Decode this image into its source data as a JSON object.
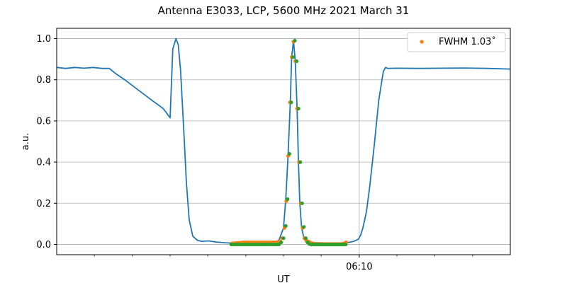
{
  "chart_data": {
    "type": "line",
    "title": "Antenna E3033, LCP, 5600 MHz 2021 March 31",
    "xlabel": "UT",
    "ylabel": "a.u.",
    "x_range": [
      0,
      1
    ],
    "ylim": [
      -0.05,
      1.05
    ],
    "y_ticks": [
      0.0,
      0.2,
      0.4,
      0.6,
      0.8,
      1.0
    ],
    "y_tick_labels": [
      "0.0",
      "0.2",
      "0.4",
      "0.6",
      "0.8",
      "1.0"
    ],
    "x_major_tick": {
      "x": 0.667,
      "label": "06:10"
    },
    "x_minor_ticks": [
      0.083,
      0.167,
      0.25,
      0.333,
      0.417,
      0.5,
      0.583,
      0.75,
      0.833,
      0.917
    ],
    "grid": true,
    "legend": {
      "placement": "top-right",
      "label": "FWHM 1.03$^\\circ$",
      "display_label": "FWHM 1.03˚"
    },
    "colors": {
      "line": "#1f77b4",
      "fwhm_points": "#ff7f0e",
      "fit_points": "#2ca02c",
      "grid": "#b0b0b0"
    },
    "series": [
      {
        "kind": "line",
        "x": [
          0.0,
          0.02,
          0.04,
          0.06,
          0.08,
          0.1,
          0.116,
          0.13,
          0.15,
          0.18,
          0.21,
          0.235,
          0.245,
          0.25,
          0.256,
          0.263,
          0.268,
          0.273,
          0.28,
          0.286,
          0.292,
          0.3,
          0.31,
          0.32,
          0.335,
          0.35,
          0.37,
          0.39,
          0.41,
          0.43,
          0.45,
          0.47,
          0.48,
          0.49,
          0.5,
          0.505,
          0.51,
          0.515,
          0.518,
          0.522,
          0.526,
          0.53,
          0.533,
          0.536,
          0.54,
          0.545,
          0.55,
          0.56,
          0.575,
          0.59,
          0.61,
          0.63,
          0.645,
          0.655,
          0.665,
          0.67,
          0.675,
          0.683,
          0.69,
          0.7,
          0.71,
          0.72,
          0.725,
          0.73,
          0.75,
          0.8,
          0.85,
          0.9,
          0.95,
          1.0
        ],
        "y": [
          0.86,
          0.855,
          0.86,
          0.856,
          0.86,
          0.855,
          0.855,
          0.83,
          0.8,
          0.75,
          0.7,
          0.66,
          0.63,
          0.615,
          0.95,
          1.0,
          0.97,
          0.85,
          0.56,
          0.3,
          0.12,
          0.04,
          0.02,
          0.015,
          0.017,
          0.012,
          0.008,
          0.006,
          0.006,
          0.006,
          0.007,
          0.008,
          0.01,
          0.02,
          0.08,
          0.22,
          0.43,
          0.69,
          0.91,
          0.99,
          0.89,
          0.66,
          0.4,
          0.2,
          0.08,
          0.03,
          0.01,
          0.005,
          0.004,
          0.004,
          0.004,
          0.005,
          0.01,
          0.015,
          0.025,
          0.045,
          0.08,
          0.16,
          0.28,
          0.48,
          0.7,
          0.84,
          0.86,
          0.855,
          0.856,
          0.855,
          0.856,
          0.857,
          0.855,
          0.852
        ]
      },
      {
        "kind": "scatter",
        "x": [
          0.387,
          0.392,
          0.397,
          0.402,
          0.407,
          0.412,
          0.417,
          0.422,
          0.427,
          0.432,
          0.437,
          0.442,
          0.447,
          0.452,
          0.457,
          0.462,
          0.467,
          0.472,
          0.477,
          0.482,
          0.487,
          0.492,
          0.497,
          0.502,
          0.506,
          0.51,
          0.514,
          0.518,
          0.522,
          0.526,
          0.53,
          0.534,
          0.538,
          0.542,
          0.546,
          0.55,
          0.554,
          0.558,
          0.562,
          0.566,
          0.57,
          0.574,
          0.578,
          0.582,
          0.586,
          0.59,
          0.594,
          0.598,
          0.602,
          0.606,
          0.61,
          0.614,
          0.618,
          0.622,
          0.626,
          0.63,
          0.634,
          0.638
        ],
        "y": [
          0.005,
          0.006,
          0.007,
          0.008,
          0.009,
          0.01,
          0.01,
          0.01,
          0.01,
          0.01,
          0.01,
          0.01,
          0.01,
          0.01,
          0.01,
          0.01,
          0.01,
          0.01,
          0.01,
          0.01,
          0.01,
          0.015,
          0.03,
          0.08,
          0.21,
          0.43,
          0.69,
          0.91,
          0.985,
          0.89,
          0.66,
          0.4,
          0.2,
          0.08,
          0.03,
          0.02,
          0.015,
          0.01,
          0.006,
          0.004,
          0.003,
          0.003,
          0.003,
          0.003,
          0.002,
          0.002,
          0.002,
          0.002,
          0.002,
          0.002,
          0.002,
          0.002,
          0.002,
          0.002,
          0.002,
          0.003,
          0.005,
          0.01
        ]
      },
      {
        "kind": "scatter",
        "x": [
          0.385,
          0.39,
          0.395,
          0.4,
          0.405,
          0.41,
          0.415,
          0.42,
          0.425,
          0.43,
          0.435,
          0.44,
          0.445,
          0.45,
          0.455,
          0.46,
          0.465,
          0.47,
          0.475,
          0.48,
          0.485,
          0.49,
          0.495,
          0.5,
          0.505,
          0.509,
          0.513,
          0.517,
          0.521,
          0.525,
          0.529,
          0.533,
          0.537,
          0.541,
          0.545,
          0.549,
          0.553,
          0.557,
          0.561,
          0.565,
          0.569,
          0.573,
          0.577,
          0.581,
          0.585,
          0.589,
          0.593,
          0.597,
          0.601,
          0.605,
          0.609,
          0.613,
          0.617,
          0.621,
          0.625,
          0.629,
          0.633,
          0.637
        ],
        "y": [
          0.0,
          0.0,
          0.0,
          0.0,
          0.0,
          0.0,
          0.0,
          0.0,
          0.0,
          0.0,
          0.0,
          0.0,
          0.0,
          0.0,
          0.0,
          0.0,
          0.0,
          0.0,
          0.0,
          0.0,
          0.0,
          0.0,
          0.01,
          0.03,
          0.09,
          0.22,
          0.44,
          0.69,
          0.91,
          0.99,
          0.89,
          0.66,
          0.4,
          0.2,
          0.085,
          0.03,
          0.01,
          0.002,
          0.0,
          0.0,
          0.0,
          0.0,
          0.0,
          0.0,
          0.0,
          0.0,
          0.0,
          0.0,
          0.0,
          0.0,
          0.0,
          0.0,
          0.0,
          0.0,
          0.0,
          0.0,
          0.0,
          0.0
        ]
      }
    ]
  }
}
